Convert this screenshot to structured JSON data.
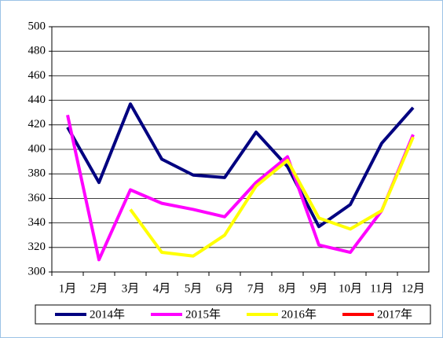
{
  "chart_data": {
    "type": "line",
    "categories": [
      "1月",
      "2月",
      "3月",
      "4月",
      "5月",
      "6月",
      "7月",
      "8月",
      "9月",
      "10月",
      "11月",
      "12月"
    ],
    "series": [
      {
        "name": "2014年",
        "color": "#000080",
        "values": [
          418,
          373,
          437,
          392,
          379,
          377,
          414,
          386,
          337,
          355,
          405,
          434
        ]
      },
      {
        "name": "2015年",
        "color": "#ff00ff",
        "values": [
          428,
          310,
          367,
          356,
          351,
          345,
          373,
          394,
          322,
          316,
          350,
          412
        ]
      },
      {
        "name": "2016年",
        "color": "#ffff00",
        "values": [
          null,
          null,
          351,
          316,
          313,
          330,
          370,
          391,
          344,
          335,
          350,
          410
        ]
      },
      {
        "name": "2017年",
        "color": "#ff0000",
        "values": [
          null,
          null,
          null,
          null,
          null,
          null,
          null,
          null,
          null,
          null,
          null,
          null
        ]
      }
    ],
    "ylim": [
      300,
      500
    ],
    "yticks": [
      300,
      320,
      340,
      360,
      380,
      400,
      420,
      440,
      460,
      480,
      500
    ],
    "grid": true,
    "legend": "bottom"
  }
}
